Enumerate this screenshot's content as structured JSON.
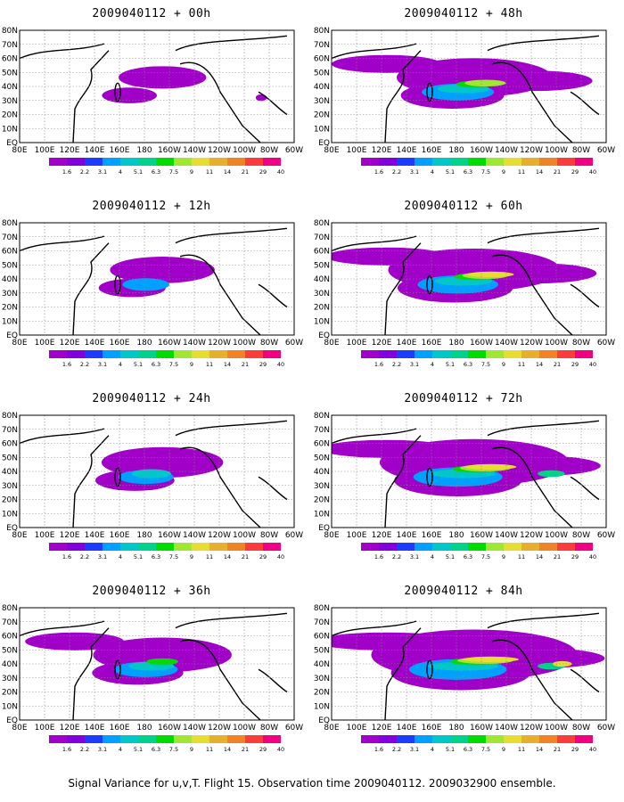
{
  "figure": {
    "caption": "Signal Variance for u,v,T. Flight 15. Observation time 2009040112. 2009032900 ensemble."
  },
  "lat_labels": [
    "80N",
    "70N",
    "60N",
    "50N",
    "40N",
    "30N",
    "20N",
    "10N",
    "EQ"
  ],
  "lon_labels": [
    "80E",
    "100E",
    "120E",
    "140E",
    "160E",
    "180",
    "160W",
    "140W",
    "120W",
    "100W",
    "80W",
    "60W"
  ],
  "colorbar": {
    "labels": [
      "1.6",
      "2.2",
      "3.1",
      "4",
      "5.1",
      "6.3",
      "7.5",
      "9",
      "11",
      "14",
      "21",
      "29",
      "40"
    ],
    "colors": [
      "#a000c8",
      "#8200dc",
      "#1e3cff",
      "#00a0ff",
      "#00c8c8",
      "#00d28c",
      "#00dc00",
      "#a0e632",
      "#e6dc32",
      "#e6af2d",
      "#f08228",
      "#fa3c3c",
      "#f00082"
    ]
  },
  "panels": [
    {
      "id": "p00",
      "title": "2009040112 + 00h",
      "level": 0
    },
    {
      "id": "p12",
      "title": "2009040112 + 12h",
      "level": 1
    },
    {
      "id": "p24",
      "title": "2009040112 + 24h",
      "level": 2
    },
    {
      "id": "p36",
      "title": "2009040112 + 36h",
      "level": 3
    },
    {
      "id": "p48",
      "title": "2009040112 + 48h",
      "level": 4
    },
    {
      "id": "p60",
      "title": "2009040112 + 60h",
      "level": 5
    },
    {
      "id": "p72",
      "title": "2009040112 + 72h",
      "level": 6
    },
    {
      "id": "p84",
      "title": "2009040112 + 84h",
      "level": 7
    }
  ]
}
